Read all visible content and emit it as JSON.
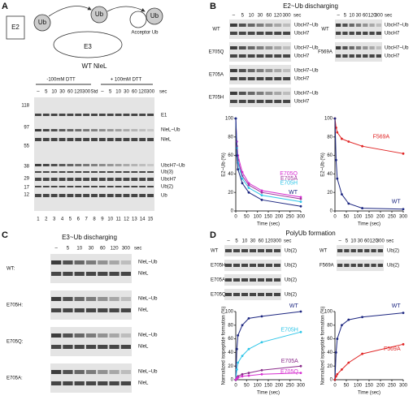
{
  "panels": {
    "a": "A",
    "b": "B",
    "c": "C",
    "d": "D"
  },
  "schematic": {
    "e2": "E2",
    "ub1": "Ub",
    "e3": "E3",
    "ub2": "Ub",
    "ub3": "Ub",
    "acceptor": "Acceptor Ub"
  },
  "gel_a": {
    "title": "WT NleL",
    "minus_dtt": "-100mM DTT",
    "plus_dtt": "+ 100mM DTT",
    "lanes": [
      "–",
      "5",
      "10",
      "30",
      "60",
      "120",
      "300",
      "Std",
      "–",
      "5",
      "10",
      "30",
      "60",
      "120",
      "300"
    ],
    "unit": "sec",
    "markers": [
      "118",
      "97",
      "55",
      "38",
      "29",
      "17",
      "12"
    ],
    "bands": [
      "E1",
      "NleL~Ub",
      "NleL",
      "UbcH7~Ub",
      "Ub(3)",
      "UbcH7",
      "Ub(2)",
      "Ub"
    ],
    "lane_numbers": [
      "1",
      "2",
      "3",
      "4",
      "5",
      "6",
      "7",
      "8",
      "9",
      "10",
      "11",
      "12",
      "13",
      "14",
      "15"
    ]
  },
  "gel_b": {
    "title": "E2~Ub discharging",
    "lanes": [
      "–",
      "5",
      "10",
      "30",
      "60",
      "120",
      "300"
    ],
    "unit": "sec",
    "rows": [
      "WT",
      "E705Q",
      "E705A",
      "E705H"
    ],
    "right_rows": [
      "WT",
      "F569A"
    ],
    "bands": [
      "UbcH7~Ub",
      "UbcH7"
    ]
  },
  "gel_c": {
    "title": "E3~Ub discharging",
    "lanes": [
      "–",
      "5",
      "10",
      "30",
      "60",
      "120",
      "300"
    ],
    "unit": "sec",
    "rows": [
      "WT:",
      "E705H:",
      "E705Q:",
      "E705A:"
    ],
    "bands": [
      "NleL~Ub",
      "NleL"
    ]
  },
  "gel_d": {
    "title": "PolyUb formation",
    "lanes": [
      "–",
      "5",
      "10",
      "30",
      "60",
      "120",
      "300"
    ],
    "unit": "sec",
    "rows": [
      "WT",
      "E705H",
      "E705A",
      "E705Q"
    ],
    "right_rows": [
      "WT",
      "F569A"
    ],
    "band": "Ub(2)"
  },
  "chart_data": [
    {
      "type": "line",
      "xlabel": "Time (sec)",
      "ylabel": "E2~Ub (%)",
      "x": [
        0,
        5,
        10,
        30,
        60,
        120,
        300
      ],
      "xlim": [
        0,
        300
      ],
      "ylim": [
        0,
        100
      ],
      "xticks": [
        0,
        50,
        100,
        150,
        200,
        250,
        300
      ],
      "yticks": [
        0,
        20,
        40,
        60,
        80,
        100
      ],
      "series": [
        {
          "name": "E705Q",
          "color": "#d62fd0",
          "values": [
            100,
            75,
            60,
            42,
            30,
            22,
            15
          ]
        },
        {
          "name": "E705A",
          "color": "#a0359c",
          "values": [
            100,
            70,
            55,
            38,
            28,
            20,
            13
          ]
        },
        {
          "name": "E705H",
          "color": "#2fc6e8",
          "values": [
            100,
            68,
            52,
            35,
            25,
            17,
            10
          ]
        },
        {
          "name": "WT",
          "color": "#1c2680",
          "values": [
            100,
            60,
            45,
            30,
            20,
            12,
            5
          ]
        }
      ]
    },
    {
      "type": "line",
      "xlabel": "Time (sec)",
      "ylabel": "E2~Ub (%)",
      "x": [
        0,
        5,
        10,
        30,
        60,
        120,
        300
      ],
      "xlim": [
        0,
        300
      ],
      "ylim": [
        0,
        100
      ],
      "xticks": [
        0,
        50,
        100,
        150,
        200,
        250,
        300
      ],
      "yticks": [
        0,
        20,
        40,
        60,
        80,
        100
      ],
      "series": [
        {
          "name": "F569A",
          "color": "#e02424",
          "values": [
            100,
            90,
            85,
            78,
            75,
            70,
            62
          ]
        },
        {
          "name": "WT",
          "color": "#1c2680",
          "values": [
            100,
            55,
            35,
            18,
            8,
            3,
            2
          ]
        }
      ]
    },
    {
      "type": "line",
      "xlabel": "Time (sec)",
      "ylabel": "Normalized isopeptide formation (%)",
      "x": [
        0,
        5,
        10,
        30,
        60,
        120,
        300
      ],
      "xlim": [
        0,
        300
      ],
      "ylim": [
        0,
        100
      ],
      "xticks": [
        0,
        50,
        100,
        150,
        200,
        250,
        300
      ],
      "yticks": [
        0,
        20,
        40,
        60,
        80,
        100
      ],
      "series": [
        {
          "name": "WT",
          "color": "#1c2680",
          "values": [
            0,
            45,
            65,
            80,
            90,
            93,
            100
          ]
        },
        {
          "name": "E705H",
          "color": "#2fc6e8",
          "values": [
            0,
            15,
            25,
            35,
            45,
            55,
            70
          ]
        },
        {
          "name": "E705A",
          "color": "#8a2a8a",
          "values": [
            0,
            3,
            5,
            8,
            10,
            14,
            20
          ]
        },
        {
          "name": "E705Q",
          "color": "#d62fd0",
          "values": [
            0,
            2,
            3,
            5,
            6,
            8,
            10
          ]
        }
      ]
    },
    {
      "type": "line",
      "xlabel": "Time (sec)",
      "ylabel": "Normalized isopeptide formation (%)",
      "x": [
        0,
        5,
        10,
        30,
        60,
        120,
        300
      ],
      "xlim": [
        0,
        300
      ],
      "ylim": [
        0,
        100
      ],
      "xticks": [
        0,
        50,
        100,
        150,
        200,
        250,
        300
      ],
      "yticks": [
        0,
        20,
        40,
        60,
        80,
        100
      ],
      "series": [
        {
          "name": "WT",
          "color": "#1c2680",
          "values": [
            0,
            40,
            60,
            80,
            88,
            92,
            98
          ]
        },
        {
          "name": "F569A",
          "color": "#e02424",
          "values": [
            0,
            5,
            8,
            15,
            25,
            38,
            52
          ]
        }
      ]
    }
  ]
}
